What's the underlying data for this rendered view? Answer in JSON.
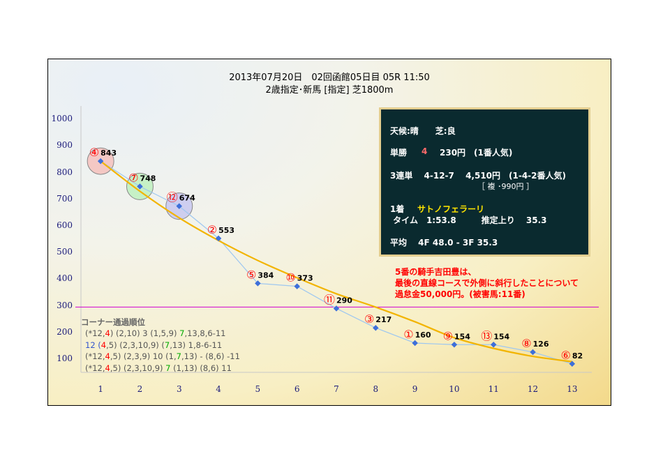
{
  "title_line1": "2013年07月20日　02回函館05日目 05R 11:50",
  "title_line2": "2歳指定･新馬 [指定] 芝1800m",
  "chart_data": {
    "type": "scatter",
    "x": [
      1,
      2,
      3,
      4,
      5,
      6,
      7,
      8,
      9,
      10,
      11,
      12,
      13
    ],
    "values": [
      843,
      748,
      674,
      553,
      384,
      373,
      290,
      217,
      160,
      154,
      154,
      126,
      82
    ],
    "horse_numbers": [
      "④",
      "⑦",
      "⑫",
      "②",
      "⑤",
      "⑩",
      "⑪",
      "③",
      "①",
      "⑨",
      "⑬",
      "⑧",
      "⑥"
    ],
    "value_labels": [
      "843",
      "748",
      "674",
      "553",
      "384",
      "373",
      "290",
      "217",
      "160",
      "154",
      "154",
      "126",
      "82"
    ],
    "x_ticks": [
      "1",
      "2",
      "3",
      "4",
      "5",
      "6",
      "7",
      "8",
      "9",
      "10",
      "11",
      "12",
      "13"
    ],
    "y_ticks": [
      "100",
      "200",
      "300",
      "400",
      "500",
      "600",
      "700",
      "800",
      "900",
      "1000"
    ],
    "ylim": [
      50,
      1050
    ],
    "xlim": [
      0.5,
      13.5
    ],
    "reference_line": 295,
    "highlight_top3": [
      1,
      2,
      3
    ],
    "trend": [
      843,
      730,
      630,
      545,
      470,
      405,
      345,
      295,
      240,
      180,
      140,
      110,
      90
    ],
    "colors": {
      "points": "#3d6fd9",
      "connector": "#9ec7f0",
      "trend": "#f2b400",
      "reference": "#d000d0",
      "circle1": "#f6b9b6",
      "circle2": "#b8f0b8",
      "circle3": "#c2c2f0",
      "marker_label": "#ff0000"
    }
  },
  "info": {
    "weather": "天候:晴　　芝:良",
    "win_label": "単勝",
    "win_number": "4",
    "win_payout": "230円　(1番人気)",
    "trifecta": "3連単　 4-12-7　 4,510円　(1-4-2番人気)",
    "box": "［ 複 ･990円 ］",
    "first_label": "1着",
    "first_name": "サトノフェラーリ",
    "time": " タイム　1:53.8　　　推定上り　 35.3",
    "average": "平均　 4F 48.0 - 3F 35.3"
  },
  "notice": [
    "5番の騎手吉田豊は、",
    "最後の直線コースで外側に斜行したことについて",
    "過怠金50,000円。(被害馬:11番)"
  ],
  "corner": {
    "title": "コーナー通過順位",
    "rows": [
      [
        {
          "t": "(*12,",
          "c": "#555"
        },
        {
          "t": "4",
          "c": "#ff0000"
        },
        {
          "t": ") (2,10) 3 (1,5,9) ",
          "c": "#555"
        },
        {
          "t": "7",
          "c": "#00aa00"
        },
        {
          "t": ",13,8,6-11",
          "c": "#555"
        }
      ],
      [
        {
          "t": "12 (",
          "c": "#3355cc"
        },
        {
          "t": "4",
          "c": "#ff0000"
        },
        {
          "t": ",5) (2,3,10,9) (",
          "c": "#555"
        },
        {
          "t": "7",
          "c": "#00aa00"
        },
        {
          "t": ",13) 1,8-6-11",
          "c": "#555"
        }
      ],
      [
        {
          "t": "(*12,",
          "c": "#555"
        },
        {
          "t": "4",
          "c": "#ff0000"
        },
        {
          "t": ",5) (2,3,9) 10 (1,",
          "c": "#555"
        },
        {
          "t": "7",
          "c": "#00aa00"
        },
        {
          "t": ",13) - (8,6) -11",
          "c": "#555"
        }
      ],
      [
        {
          "t": "(*12,",
          "c": "#555"
        },
        {
          "t": "4",
          "c": "#ff0000"
        },
        {
          "t": ",5) (2,3,10,9) ",
          "c": "#555"
        },
        {
          "t": "7",
          "c": "#00aa00"
        },
        {
          "t": " (1,13) (8,6) 11",
          "c": "#555"
        }
      ]
    ]
  }
}
